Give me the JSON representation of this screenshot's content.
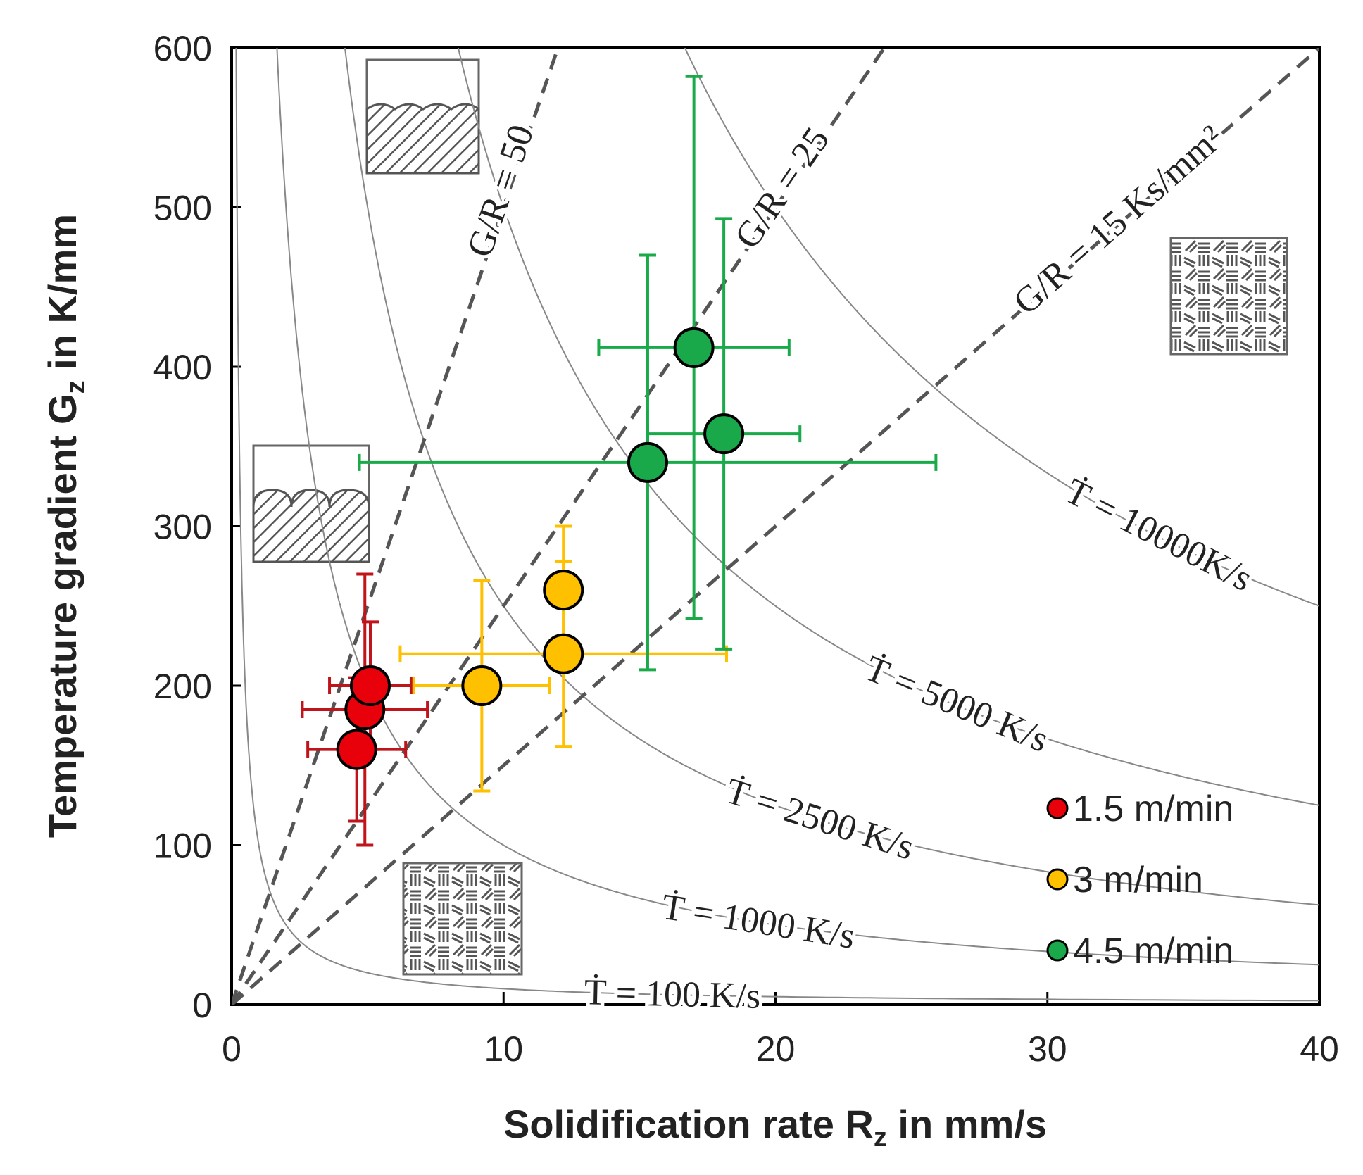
{
  "chart_data": {
    "type": "scatter",
    "xlabel": [
      "Solidification  rate R",
      "z",
      " in mm/s"
    ],
    "ylabel": [
      "Temperature gradient G",
      "z",
      " in K/mm"
    ],
    "xlim": [
      0,
      40
    ],
    "xticks": [
      0,
      10,
      20,
      30,
      40
    ],
    "ylim": [
      0,
      600
    ],
    "yticks": [
      0,
      100,
      200,
      300,
      400,
      500,
      600
    ],
    "legend": "lower right",
    "series": [
      {
        "name": "1.5 m/min",
        "color": "#e8000b",
        "error_color": "#c0141b",
        "x": [
          4.6,
          4.9,
          5.1
        ],
        "values": [
          160,
          185,
          200
        ],
        "xerr": [
          1.8,
          2.3,
          1.5
        ],
        "yerr": [
          45,
          85,
          40
        ]
      },
      {
        "name": "3 m/min",
        "color": "#ffc000",
        "error_color": "#ffc000",
        "x": [
          9.2,
          12.2,
          12.2
        ],
        "values": [
          200,
          260,
          220
        ],
        "xerr": [
          2.5,
          0.6,
          6.0
        ],
        "yerr": [
          66,
          40,
          58
        ]
      },
      {
        "name": "4.5 m/min",
        "color": "#19a84a",
        "error_color": "#1aaa4a",
        "x": [
          17.0,
          15.3,
          18.1
        ],
        "values": [
          412,
          340,
          358
        ],
        "xerr": [
          3.5,
          10.6,
          2.8
        ],
        "yerr": [
          170,
          130,
          135
        ]
      }
    ],
    "cooling_rates": [
      {
        "value": 100,
        "label": "Ṫ = 100 K/s"
      },
      {
        "value": 1000,
        "label": "Ṫ = 1000 K/s"
      },
      {
        "value": 2500,
        "label": "Ṫ = 2500 K/s"
      },
      {
        "value": 5000,
        "label": "Ṫ = 5000 K/s"
      },
      {
        "value": 10000,
        "label": "Ṫ = 10000K/s"
      }
    ],
    "gr_ratios": [
      {
        "value": 50,
        "label": "G/R = 50"
      },
      {
        "value": 25,
        "label": "G/R = 25"
      },
      {
        "value": 15,
        "label": "G/R = 15 Ks/mm²"
      }
    ]
  }
}
